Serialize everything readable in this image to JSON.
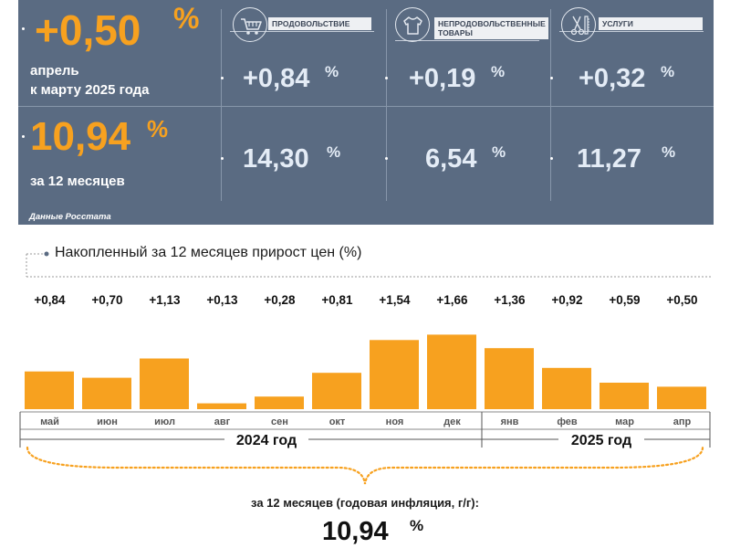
{
  "summary": {
    "monthly_value": "+0,50",
    "monthly_pct": "%",
    "monthly_caption_line1": "апрель",
    "monthly_caption_line2": "к марту 2025 года",
    "annual_value": "10,94",
    "annual_pct": "%",
    "annual_caption": "за 12 месяцев",
    "source": "Данные Росстата"
  },
  "categories": [
    {
      "label": "ПРОДОВОЛЬСТВИЕ",
      "icon": "shopping-cart-icon",
      "monthly": "+0,84",
      "annual": "14,30",
      "pct": "%"
    },
    {
      "label_line1": "НЕПРОДОВОЛЬСТВЕННЫЕ",
      "label_line2": "ТОВАРЫ",
      "icon": "clothing-icon",
      "monthly": "+0,19",
      "annual": "6,54",
      "pct": "%"
    },
    {
      "label": "УСЛУГИ",
      "icon": "scissors-comb-icon",
      "monthly": "+0,32",
      "annual": "11,27",
      "pct": "%"
    }
  ],
  "colors": {
    "panel": "#5a6b82",
    "accent": "#f7a11f",
    "panel_text": "#e4ecf6"
  },
  "chart_data": {
    "type": "bar",
    "title": "Накопленный за 12 месяцев прирост цен (%)",
    "categories": [
      "май",
      "июн",
      "июл",
      "авг",
      "сен",
      "окт",
      "ноя",
      "дек",
      "янв",
      "фев",
      "мар",
      "апр"
    ],
    "values": [
      0.84,
      0.7,
      1.13,
      0.13,
      0.28,
      0.81,
      1.54,
      1.66,
      1.36,
      0.92,
      0.59,
      0.5
    ],
    "value_labels": [
      "+0,84",
      "+0,70",
      "+1,13",
      "+0,13",
      "+0,28",
      "+0,81",
      "+1,54",
      "+1,66",
      "+1,36",
      "+0,92",
      "+0,59",
      "+0,50"
    ],
    "year_groups": [
      {
        "label": "2024 год",
        "months": 8
      },
      {
        "label": "2025 год",
        "months": 4
      }
    ],
    "ylim": [
      0,
      1.75
    ],
    "bar_color": "#f7a11f",
    "bottom_label": "за 12 месяцев (годовая инфляция, г/г):",
    "bottom_value": "10,94",
    "bottom_pct": "%"
  }
}
